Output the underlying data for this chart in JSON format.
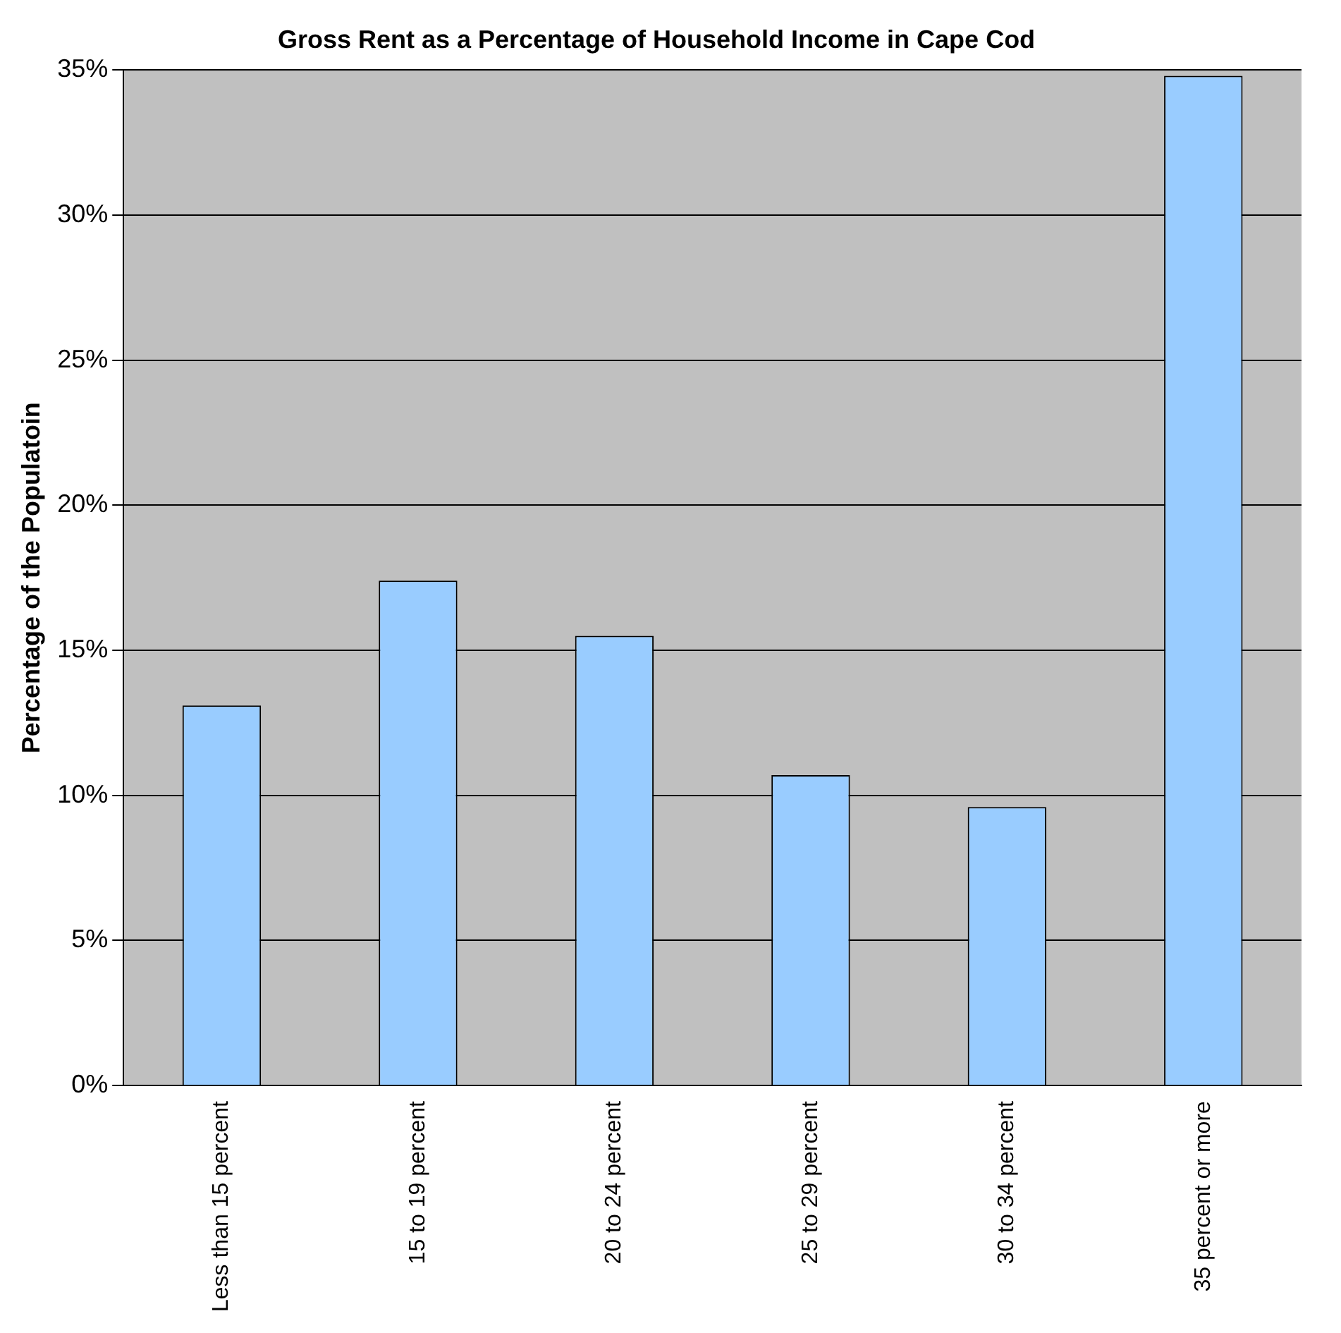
{
  "chart_data": {
    "type": "bar",
    "title": "Gross Rent as a Percentage of Household Income in Cape Cod",
    "ylabel": "Percentage of the Populatoin",
    "categories": [
      "Less than 15 percent",
      "15 to 19 percent",
      "20 to 24 percent",
      "25 to 29 percent",
      "30 to 34 percent",
      "35 percent or more"
    ],
    "values": [
      13.1,
      17.4,
      15.5,
      10.7,
      9.6,
      34.8
    ],
    "color": "#99ccff",
    "ylim": [
      0,
      35
    ],
    "yticks": [
      {
        "value": 0,
        "label": "0%"
      },
      {
        "value": 5,
        "label": "5%"
      },
      {
        "value": 10,
        "label": "10%"
      },
      {
        "value": 15,
        "label": "15%"
      },
      {
        "value": 20,
        "label": "20%"
      },
      {
        "value": 25,
        "label": "25%"
      },
      {
        "value": 30,
        "label": "30%"
      },
      {
        "value": 35,
        "label": "35%"
      }
    ],
    "grid": "y",
    "legend": false
  }
}
